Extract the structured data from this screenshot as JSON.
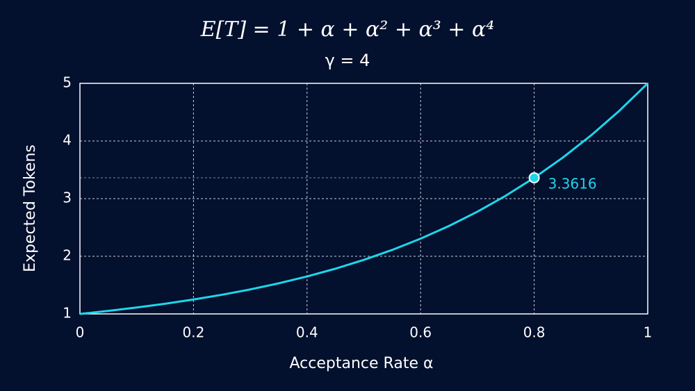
{
  "chart_data": {
    "type": "line",
    "title": "E[T] = 1 + α + α² + α³ + α⁴",
    "subtitle": "γ = 4",
    "x_label": "Acceptance Rate α",
    "y_label": "Expected Tokens",
    "x": [
      0,
      0.05,
      0.1,
      0.15,
      0.2,
      0.25,
      0.3,
      0.35,
      0.4,
      0.45,
      0.5,
      0.55,
      0.6,
      0.65,
      0.7,
      0.75,
      0.8,
      0.85,
      0.9,
      0.95,
      1
    ],
    "series": [
      {
        "name": "E[T]",
        "color": "#1ed6ea",
        "values": [
          1,
          1.05263,
          1.1111,
          1.17638,
          1.2496,
          1.33203,
          1.4251,
          1.53038,
          1.6496,
          1.78463,
          1.9375,
          2.11038,
          2.3056,
          2.52563,
          2.7731,
          3.05078,
          3.3616,
          3.70863,
          4.0951,
          4.52438,
          5
        ]
      }
    ],
    "annotation": {
      "x": 0.8,
      "y": 3.3616
    },
    "xlim": [
      0,
      1
    ],
    "ylim": [
      1,
      5
    ],
    "xticks": [
      0,
      0.2,
      0.4,
      0.6,
      0.8,
      1
    ],
    "yticks": [
      1,
      2,
      3,
      4,
      5
    ],
    "grid": true
  }
}
